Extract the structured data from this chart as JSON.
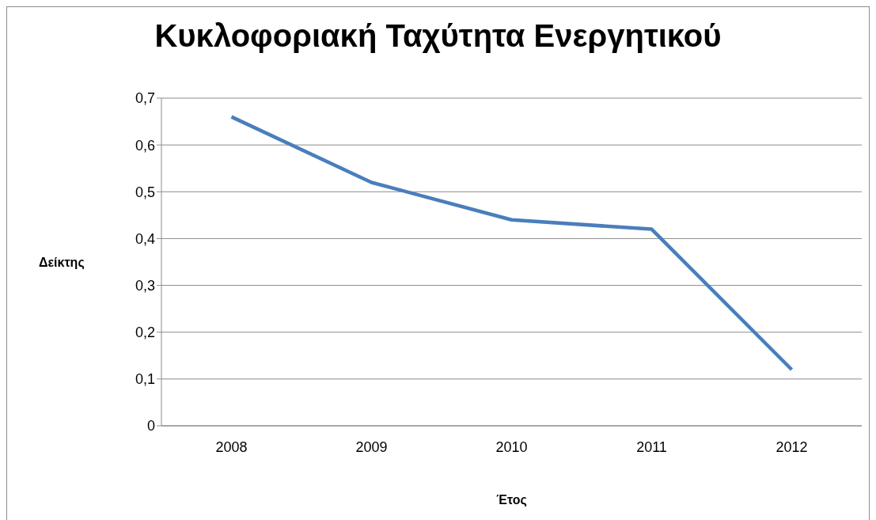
{
  "chart_data": {
    "type": "line",
    "title": "Κυκλοφοριακή Ταχύτητα Ενεργητικού",
    "xlabel": "Έτος",
    "ylabel": "Δείκτης",
    "categories": [
      "2008",
      "2009",
      "2010",
      "2011",
      "2012"
    ],
    "series": [
      {
        "color": "#4a7ebb",
        "values": [
          0.66,
          0.52,
          0.44,
          0.42,
          0.12
        ]
      }
    ],
    "ylim": [
      0,
      0.7
    ],
    "yticks": [
      0,
      {
        "value": 0.1,
        "label": "0,1"
      },
      {
        "value": 0.2,
        "label": "0,2"
      },
      {
        "value": 0.3,
        "label": "0,3"
      },
      {
        "value": 0.4,
        "label": "0,4"
      },
      {
        "value": 0.5,
        "label": "0,5"
      },
      {
        "value": 0.6,
        "label": "0,6"
      },
      {
        "value": 0.7,
        "label": "0,7"
      }
    ],
    "grid": "y",
    "marker": "none",
    "line_style": "solid"
  }
}
